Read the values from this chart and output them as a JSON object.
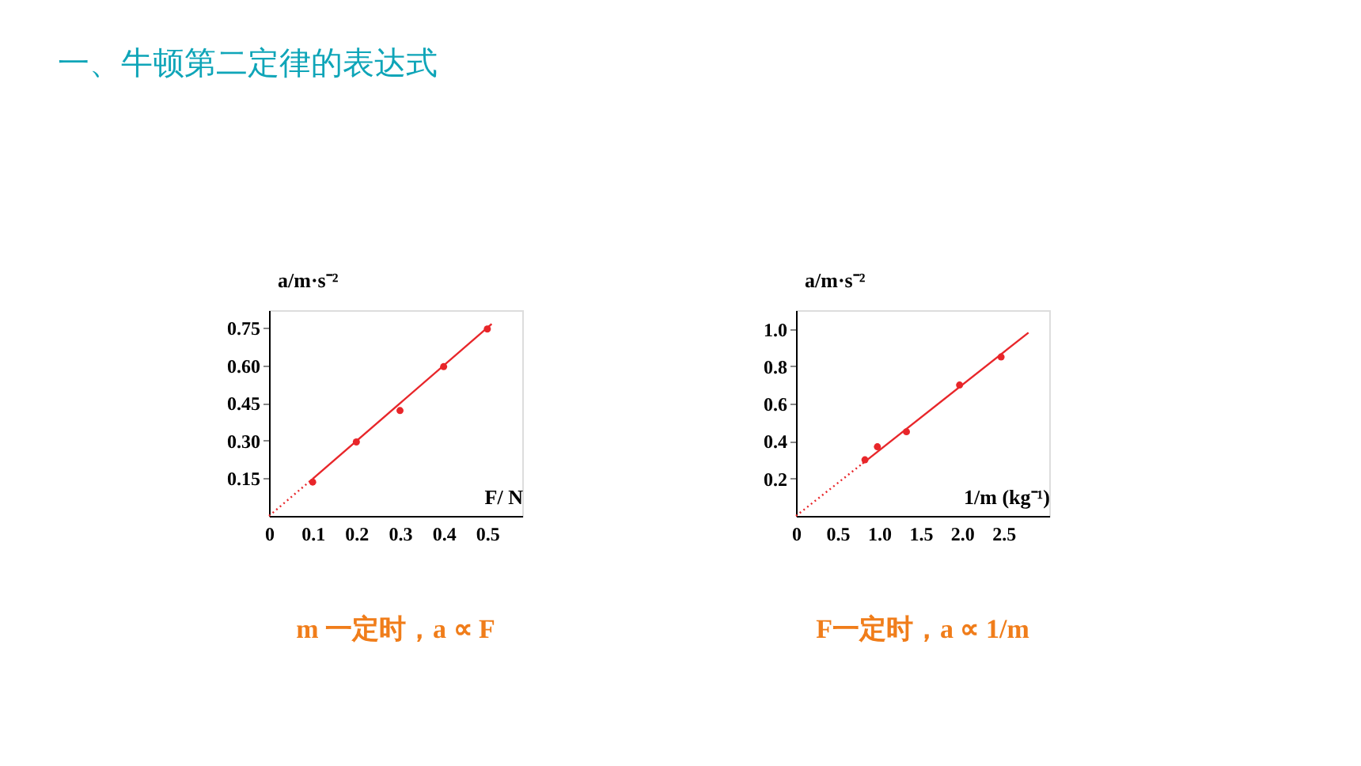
{
  "chart_data": [
    {
      "type": "scatter",
      "title": "一、牛顿第二定律的表达式",
      "xlabel": "F/ N",
      "ylabel": "a/m·s⁻²",
      "annotations": [
        "m 一定时，a ∝ F"
      ],
      "xlim": [
        0,
        0.58
      ],
      "ylim": [
        0,
        0.82
      ],
      "xticks": [
        0,
        0.1,
        0.2,
        0.3,
        0.4,
        0.5
      ],
      "yticks": [
        0.15,
        {
          "value": 0.3,
          "label": "0.30"
        },
        0.45,
        {
          "value": 0.6,
          "label": "0.60"
        },
        0.75
      ],
      "grid": false,
      "legend": false,
      "marker": "circle",
      "series": [
        {
          "color": "#e8262a",
          "x": [
            0.1,
            0.2,
            0.3,
            0.4,
            0.5
          ],
          "values": [
            0.135,
            0.295,
            0.42,
            0.595,
            0.745
          ]
        },
        {
          "type": "line",
          "color": "#e8262a",
          "line_style": "dotted",
          "marker": "none",
          "x": [
            0,
            0.1
          ],
          "values": [
            0,
            0.148
          ]
        },
        {
          "type": "line",
          "color": "#e8262a",
          "line_style": "solid",
          "marker": "none",
          "x": [
            0.1,
            0.51
          ],
          "values": [
            0.148,
            0.765
          ]
        }
      ]
    },
    {
      "type": "scatter",
      "xlabel": "1/m (kg⁻¹)",
      "ylabel": "a/m·s⁻²",
      "annotations": [
        "F一定时，a ∝ 1/m"
      ],
      "xlim": [
        0,
        3.05
      ],
      "ylim": [
        0,
        1.1
      ],
      "xticks": [
        0,
        0.5,
        {
          "value": 1,
          "label": "1.0"
        },
        1.5,
        {
          "value": 2,
          "label": "2.0"
        },
        2.5
      ],
      "yticks": [
        0.2,
        0.4,
        0.6,
        0.8,
        {
          "value": 1,
          "label": "1.0"
        }
      ],
      "grid": false,
      "legend": false,
      "marker": "circle",
      "series": [
        {
          "color": "#e8262a",
          "x": [
            0.83,
            0.98,
            1.33,
            1.97,
            2.47
          ],
          "values": [
            0.3,
            0.37,
            0.45,
            0.7,
            0.85
          ]
        },
        {
          "type": "line",
          "color": "#e8262a",
          "line_style": "dotted",
          "marker": "none",
          "x": [
            0,
            0.8
          ],
          "values": [
            0,
            0.28
          ]
        },
        {
          "type": "line",
          "color": "#e8262a",
          "line_style": "solid",
          "marker": "none",
          "x": [
            0.8,
            2.8
          ],
          "values": [
            0.28,
            0.98
          ]
        }
      ]
    }
  ]
}
